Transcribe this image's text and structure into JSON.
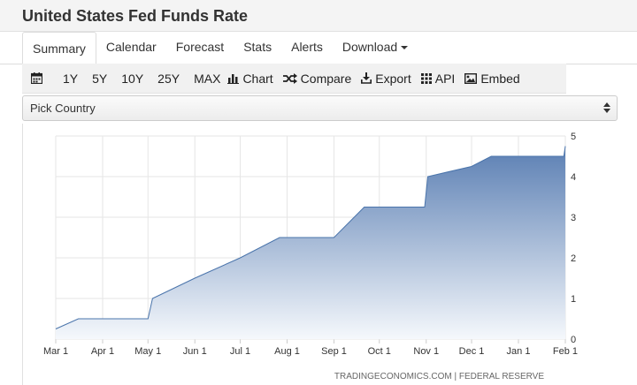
{
  "page": {
    "title": "United States Fed Funds Rate"
  },
  "nav": {
    "tabs": [
      {
        "label": "Summary",
        "active": true
      },
      {
        "label": "Calendar"
      },
      {
        "label": "Forecast"
      },
      {
        "label": "Stats"
      },
      {
        "label": "Alerts"
      },
      {
        "label": "Download"
      }
    ]
  },
  "toolbar": {
    "ranges": [
      "1Y",
      "5Y",
      "10Y",
      "25Y",
      "MAX"
    ],
    "chart_label": "Chart",
    "compare_label": "Compare",
    "export_label": "Export",
    "api_label": "API",
    "embed_label": "Embed"
  },
  "country_select": {
    "value": "Pick Country"
  },
  "chart_data": {
    "type": "area",
    "x_ticks": [
      "Mar 1",
      "Apr 1",
      "May 1",
      "Jun 1",
      "Jul 1",
      "Aug 1",
      "Sep 1",
      "Oct 1",
      "Nov 1",
      "Dec 1",
      "Jan 1",
      "Feb 1"
    ],
    "x": [
      "2022-03-01",
      "2022-03-16",
      "2022-04-01",
      "2022-04-15",
      "2022-05-01",
      "2022-05-04",
      "2022-06-01",
      "2022-07-01",
      "2022-07-27",
      "2022-09-01",
      "2022-09-21",
      "2022-10-01",
      "2022-10-31",
      "2022-11-02",
      "2022-12-01",
      "2022-12-14",
      "2023-01-01",
      "2023-01-31",
      "2023-02-01"
    ],
    "values": [
      0.25,
      0.5,
      0.5,
      0.5,
      0.5,
      1.0,
      1.5,
      2.0,
      2.5,
      2.5,
      3.25,
      3.25,
      3.25,
      4.0,
      4.25,
      4.5,
      4.5,
      4.5,
      4.75
    ],
    "ylim": [
      0,
      5
    ],
    "y_ticks": [
      0,
      1,
      2,
      3,
      4,
      5
    ],
    "grid": true,
    "y_axis_side": "right",
    "credit": "TRADINGECONOMICS.COM | FEDERAL RESERVE",
    "colors": {
      "fill_top": "#5b7fb3",
      "fill_bottom": "#f5f8fc",
      "line": "#4a74ab",
      "grid": "#e6e6e6"
    }
  }
}
